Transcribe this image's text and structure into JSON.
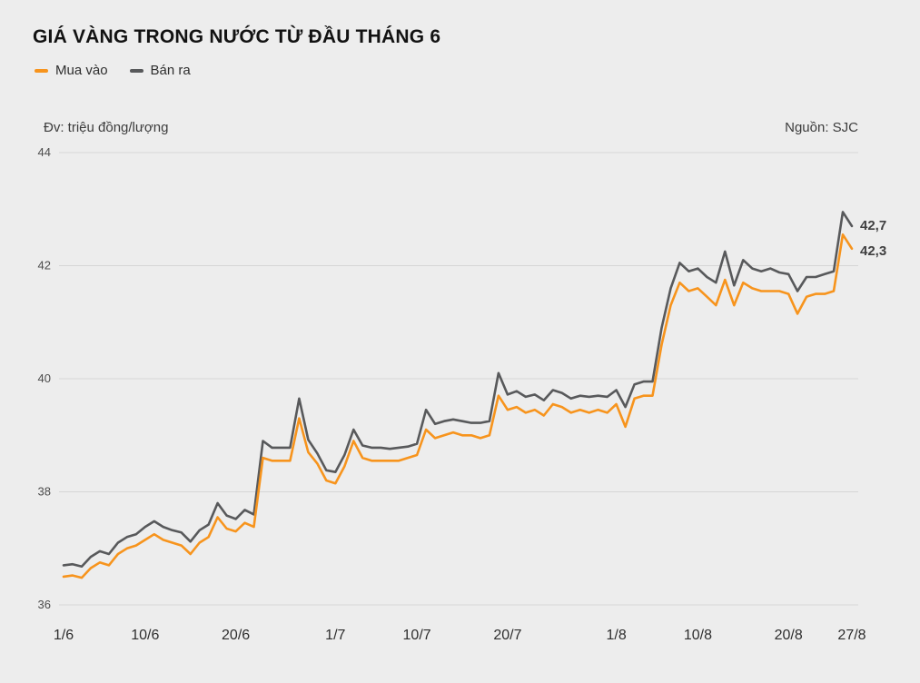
{
  "header": {
    "title": "GIÁ VÀNG TRONG NƯỚC TỪ ĐẦU THÁNG 6",
    "unit_label": "Đv: triệu đồng/lượng",
    "source_label": "Nguồn: SJC"
  },
  "legend": [
    {
      "label": "Mua vào",
      "color": "#f7941d"
    },
    {
      "label": "Bán ra",
      "color": "#58595b"
    }
  ],
  "chart_data": {
    "type": "line",
    "title": "GIÁ VÀNG TRONG NƯỚC TỪ ĐẦU THÁNG 6",
    "unit": "triệu đồng/lượng",
    "source": "SJC",
    "ylim": [
      36,
      44
    ],
    "y_ticks": [
      36,
      38,
      40,
      42,
      44
    ],
    "x_tick_labels": [
      "1/6",
      "10/6",
      "20/6",
      "1/7",
      "10/7",
      "20/7",
      "1/8",
      "10/8",
      "20/8",
      "27/8"
    ],
    "x_tick_day_index": [
      0,
      9,
      19,
      30,
      39,
      49,
      61,
      70,
      80,
      87
    ],
    "grid": true,
    "legend_position": "top-left",
    "series": [
      {
        "name": "Mua vào",
        "color": "#f7941d",
        "end_label": "42,3",
        "end_value": 42.3,
        "values": [
          36.5,
          36.52,
          36.48,
          36.65,
          36.75,
          36.7,
          36.9,
          37.0,
          37.05,
          37.15,
          37.25,
          37.15,
          37.1,
          37.05,
          36.9,
          37.1,
          37.2,
          37.55,
          37.35,
          37.3,
          37.45,
          37.38,
          38.6,
          38.55,
          38.55,
          38.55,
          39.3,
          38.7,
          38.5,
          38.2,
          38.15,
          38.45,
          38.9,
          38.6,
          38.55,
          38.55,
          38.55,
          38.55,
          38.6,
          38.65,
          39.1,
          38.95,
          39.0,
          39.05,
          39.0,
          39.0,
          38.95,
          39.0,
          39.7,
          39.45,
          39.5,
          39.4,
          39.45,
          39.35,
          39.55,
          39.5,
          39.4,
          39.45,
          39.4,
          39.45,
          39.4,
          39.55,
          39.15,
          39.65,
          39.7,
          39.7,
          40.6,
          41.3,
          41.7,
          41.55,
          41.6,
          41.45,
          41.3,
          41.75,
          41.3,
          41.7,
          41.6,
          41.55,
          41.55,
          41.55,
          41.5,
          41.15,
          41.45,
          41.5,
          41.5,
          41.55,
          42.55,
          42.3
        ]
      },
      {
        "name": "Bán ra",
        "color": "#58595b",
        "end_label": "42,7",
        "end_value": 42.7,
        "values": [
          36.7,
          36.72,
          36.68,
          36.85,
          36.95,
          36.9,
          37.1,
          37.2,
          37.25,
          37.38,
          37.48,
          37.38,
          37.32,
          37.28,
          37.12,
          37.32,
          37.42,
          37.8,
          37.58,
          37.52,
          37.68,
          37.6,
          38.9,
          38.78,
          38.78,
          38.78,
          39.65,
          38.92,
          38.68,
          38.38,
          38.35,
          38.65,
          39.1,
          38.82,
          38.78,
          38.78,
          38.76,
          38.78,
          38.8,
          38.85,
          39.45,
          39.2,
          39.25,
          39.28,
          39.25,
          39.22,
          39.22,
          39.25,
          40.1,
          39.72,
          39.78,
          39.68,
          39.72,
          39.62,
          39.8,
          39.75,
          39.65,
          39.7,
          39.68,
          39.7,
          39.68,
          39.8,
          39.5,
          39.9,
          39.95,
          39.95,
          40.9,
          41.6,
          42.05,
          41.9,
          41.95,
          41.8,
          41.7,
          42.25,
          41.65,
          42.1,
          41.95,
          41.9,
          41.95,
          41.88,
          41.85,
          41.55,
          41.8,
          41.8,
          41.85,
          41.9,
          42.95,
          42.7
        ]
      }
    ]
  }
}
